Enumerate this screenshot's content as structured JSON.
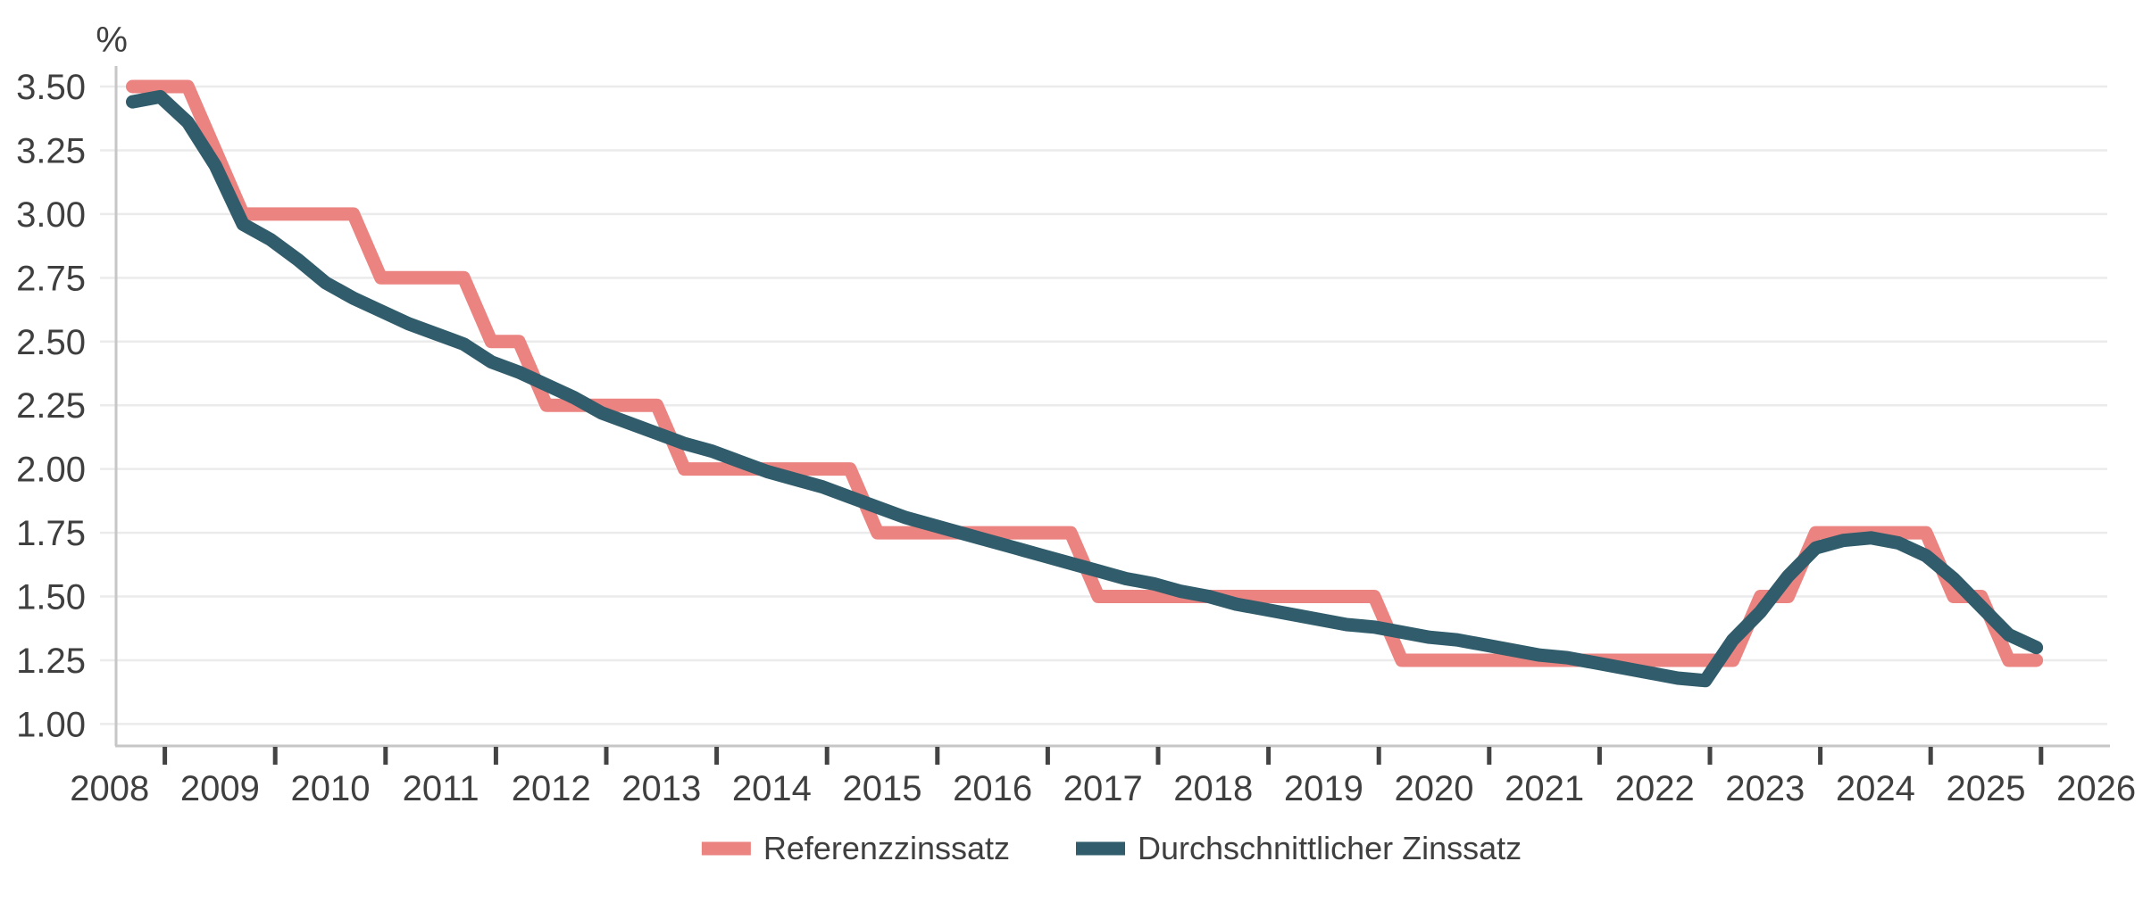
{
  "colors": {
    "referenzzinssatz_line": "#EB8380",
    "durchschnittlicher_zinssatz_line": "#305C6B",
    "gridline": "#EBEBEB",
    "axis_line": "#C6C6C6",
    "tick_mark": "#434343",
    "label_text": "#3F3F3F",
    "background": "#FFFFFF"
  },
  "chart_data": {
    "type": "line",
    "title": "",
    "unit_label": "%",
    "grid": "horizontal-only",
    "legend_position": "bottom-center",
    "x_axis": {
      "label_years": [
        "2008",
        "2009",
        "2010",
        "2011",
        "2012",
        "2013",
        "2014",
        "2015",
        "2016",
        "2017",
        "2018",
        "2019",
        "2020",
        "2021",
        "2022",
        "2023",
        "2024",
        "2025",
        "2026"
      ],
      "tick_years": [
        2009,
        2010,
        2011,
        2012,
        2013,
        2014,
        2015,
        2016,
        2017,
        2018,
        2019,
        2020,
        2021,
        2022,
        2023,
        2024,
        2025,
        2026
      ],
      "range": [
        2008.45,
        2026.15
      ]
    },
    "y_axis": {
      "min": 1.0,
      "max": 3.5,
      "step": 0.25,
      "tick_labels": [
        "3.50",
        "3.25",
        "3.00",
        "2.75",
        "2.50",
        "2.25",
        "2.00",
        "1.75",
        "1.50",
        "1.25",
        "1.00"
      ]
    },
    "x_quarters": [
      "2008-Q3",
      "2008-Q4",
      "2009-Q1",
      "2009-Q2",
      "2009-Q3",
      "2009-Q4",
      "2010-Q1",
      "2010-Q2",
      "2010-Q3",
      "2010-Q4",
      "2011-Q1",
      "2011-Q2",
      "2011-Q3",
      "2011-Q4",
      "2012-Q1",
      "2012-Q2",
      "2012-Q3",
      "2012-Q4",
      "2013-Q1",
      "2013-Q2",
      "2013-Q3",
      "2013-Q4",
      "2014-Q1",
      "2014-Q2",
      "2014-Q3",
      "2014-Q4",
      "2015-Q1",
      "2015-Q2",
      "2015-Q3",
      "2015-Q4",
      "2016-Q1",
      "2016-Q2",
      "2016-Q3",
      "2016-Q4",
      "2017-Q1",
      "2017-Q2",
      "2017-Q3",
      "2017-Q4",
      "2018-Q1",
      "2018-Q2",
      "2018-Q3",
      "2018-Q4",
      "2019-Q1",
      "2019-Q2",
      "2019-Q3",
      "2019-Q4",
      "2020-Q1",
      "2020-Q2",
      "2020-Q3",
      "2020-Q4",
      "2021-Q1",
      "2021-Q2",
      "2021-Q3",
      "2021-Q4",
      "2022-Q1",
      "2022-Q2",
      "2022-Q3",
      "2022-Q4",
      "2023-Q1",
      "2023-Q2",
      "2023-Q3",
      "2023-Q4",
      "2024-Q1",
      "2024-Q2",
      "2024-Q3",
      "2024-Q4",
      "2025-Q1",
      "2025-Q2",
      "2025-Q3",
      "2025-Q4"
    ],
    "series": [
      {
        "name": "Referenzzinssatz",
        "color": "#EB8380",
        "values": [
          3.5,
          3.5,
          3.5,
          3.25,
          3.0,
          3.0,
          3.0,
          3.0,
          3.0,
          2.75,
          2.75,
          2.75,
          2.75,
          2.5,
          2.5,
          2.25,
          2.25,
          2.25,
          2.25,
          2.25,
          2.0,
          2.0,
          2.0,
          2.0,
          2.0,
          2.0,
          2.0,
          1.75,
          1.75,
          1.75,
          1.75,
          1.75,
          1.75,
          1.75,
          1.75,
          1.5,
          1.5,
          1.5,
          1.5,
          1.5,
          1.5,
          1.5,
          1.5,
          1.5,
          1.5,
          1.5,
          1.25,
          1.25,
          1.25,
          1.25,
          1.25,
          1.25,
          1.25,
          1.25,
          1.25,
          1.25,
          1.25,
          1.25,
          1.25,
          1.5,
          1.5,
          1.75,
          1.75,
          1.75,
          1.75,
          1.75,
          1.5,
          1.5,
          1.25,
          1.25
        ]
      },
      {
        "name": "Durchschnittlicher Zinssatz",
        "color": "#305C6B",
        "values": [
          3.44,
          3.46,
          3.36,
          3.19,
          2.96,
          2.9,
          2.82,
          2.73,
          2.67,
          2.62,
          2.57,
          2.53,
          2.49,
          2.42,
          2.38,
          2.33,
          2.28,
          2.22,
          2.18,
          2.14,
          2.1,
          2.07,
          2.03,
          1.99,
          1.96,
          1.93,
          1.89,
          1.85,
          1.81,
          1.78,
          1.75,
          1.72,
          1.69,
          1.66,
          1.63,
          1.6,
          1.57,
          1.55,
          1.52,
          1.5,
          1.47,
          1.45,
          1.43,
          1.41,
          1.39,
          1.38,
          1.36,
          1.34,
          1.33,
          1.31,
          1.29,
          1.27,
          1.26,
          1.24,
          1.22,
          1.2,
          1.18,
          1.17,
          1.33,
          1.44,
          1.58,
          1.69,
          1.72,
          1.73,
          1.71,
          1.66,
          1.57,
          1.46,
          1.35,
          1.3
        ]
      }
    ],
    "legend": [
      {
        "label": "Referenzzinssatz",
        "color": "#EB8380"
      },
      {
        "label": "Durchschnittlicher Zinssatz",
        "color": "#305C6B"
      }
    ]
  }
}
